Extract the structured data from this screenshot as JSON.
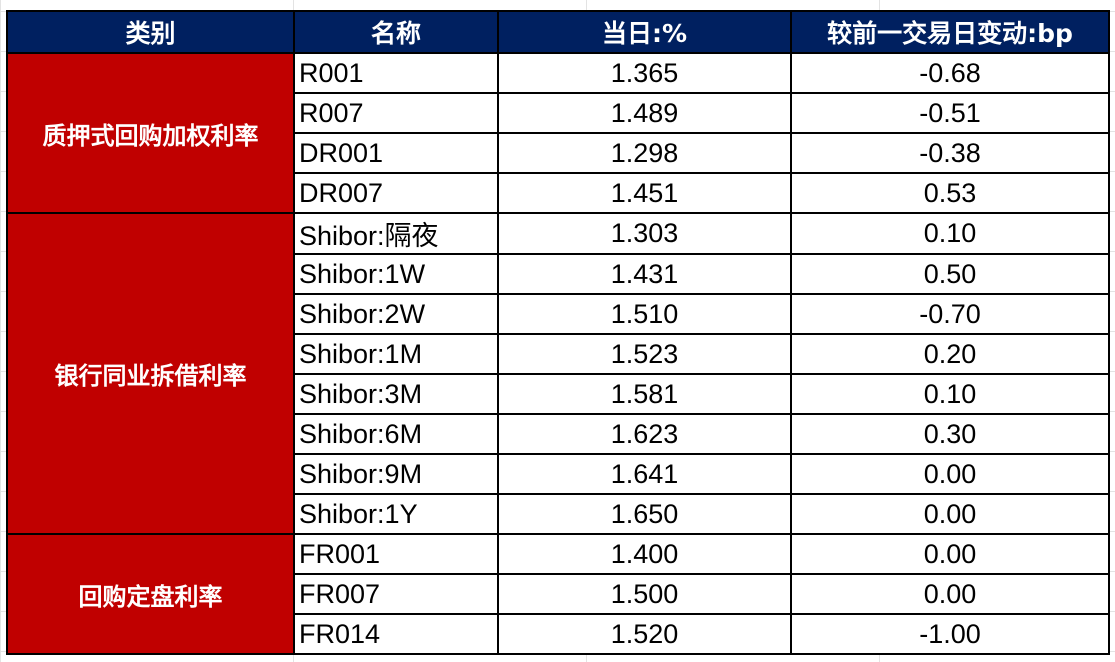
{
  "header": {
    "category": "类别",
    "name": "名称",
    "today": "当日:%",
    "change": "较前一交易日变动:bp"
  },
  "groups": [
    {
      "category": "质押式回购加权利率",
      "rows": [
        {
          "name": "R001",
          "today": "1.365",
          "change": "-0.68"
        },
        {
          "name": "R007",
          "today": "1.489",
          "change": "-0.51"
        },
        {
          "name": "DR001",
          "today": "1.298",
          "change": "-0.38"
        },
        {
          "name": "DR007",
          "today": "1.451",
          "change": "0.53"
        }
      ]
    },
    {
      "category": "银行同业拆借利率",
      "rows": [
        {
          "name": "Shibor:隔夜",
          "today": "1.303",
          "change": "0.10"
        },
        {
          "name": "Shibor:1W",
          "today": "1.431",
          "change": "0.50"
        },
        {
          "name": "Shibor:2W",
          "today": "1.510",
          "change": "-0.70"
        },
        {
          "name": "Shibor:1M",
          "today": "1.523",
          "change": "0.20"
        },
        {
          "name": "Shibor:3M",
          "today": "1.581",
          "change": "0.10"
        },
        {
          "name": "Shibor:6M",
          "today": "1.623",
          "change": "0.30"
        },
        {
          "name": "Shibor:9M",
          "today": "1.641",
          "change": "0.00"
        },
        {
          "name": "Shibor:1Y",
          "today": "1.650",
          "change": "0.00"
        }
      ]
    },
    {
      "category": "回购定盘利率",
      "rows": [
        {
          "name": "FR001",
          "today": "1.400",
          "change": "0.00"
        },
        {
          "name": "FR007",
          "today": "1.500",
          "change": "0.00"
        },
        {
          "name": "FR014",
          "today": "1.520",
          "change": "-1.00"
        }
      ]
    }
  ],
  "colors": {
    "header_bg": "#002060",
    "category_bg": "#C00000"
  }
}
